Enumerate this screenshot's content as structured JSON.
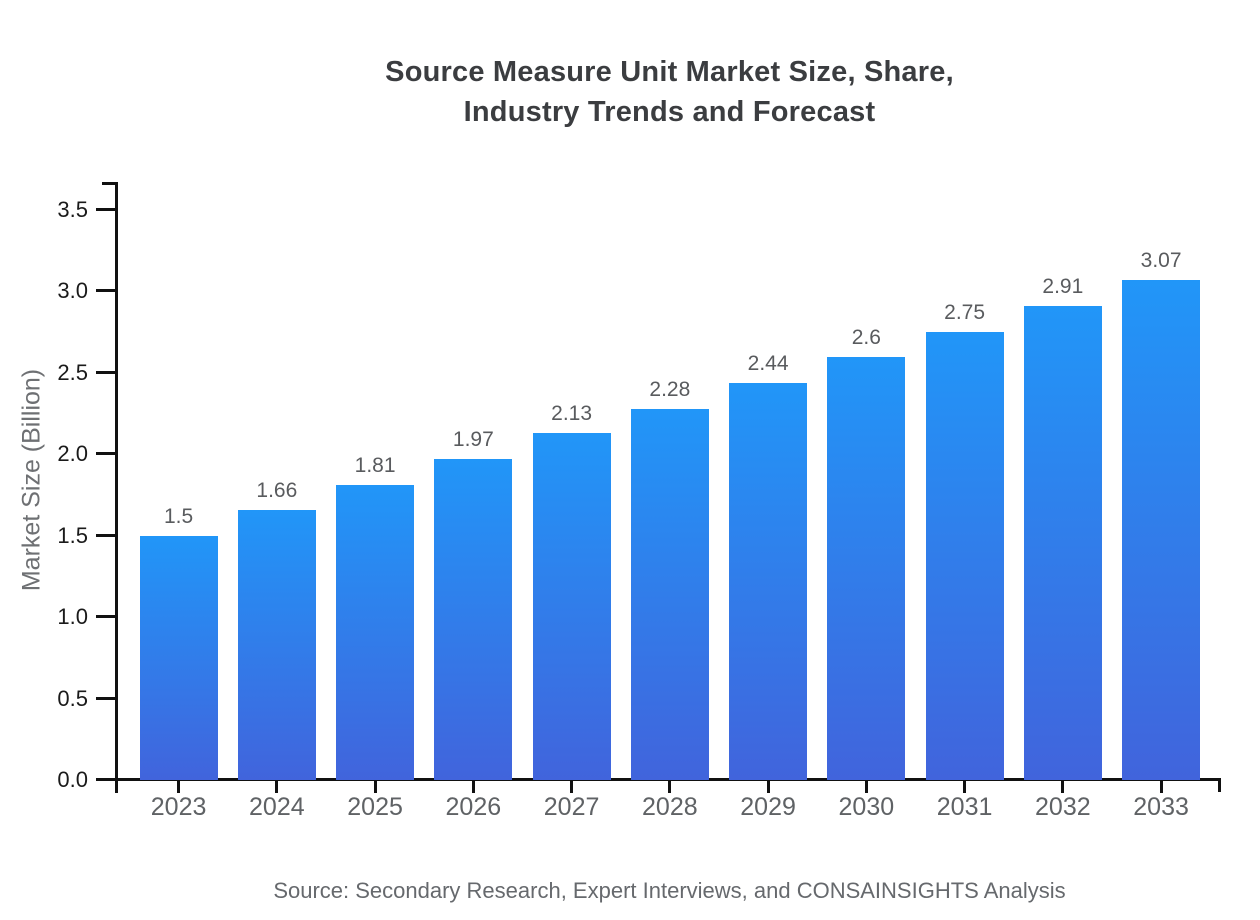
{
  "chart_data": {
    "type": "bar",
    "title": "Source Measure Unit Market Size, Share,\nIndustry Trends and Forecast",
    "categories": [
      "2023",
      "2024",
      "2025",
      "2026",
      "2027",
      "2028",
      "2029",
      "2030",
      "2031",
      "2032",
      "2033"
    ],
    "values": [
      1.5,
      1.66,
      1.81,
      1.97,
      2.13,
      2.28,
      2.44,
      2.6,
      2.75,
      2.91,
      3.07
    ],
    "value_labels": [
      "1.5",
      "1.66",
      "1.81",
      "1.97",
      "2.13",
      "2.28",
      "2.44",
      "2.6",
      "2.75",
      "2.91",
      "3.07"
    ],
    "xlabel": "",
    "ylabel": "Market Size (Billion)",
    "ylim": [
      0,
      3.5
    ],
    "ytick_step": 0.5,
    "ytick_labels": [
      "0.0",
      "0.5",
      "1.0",
      "1.5",
      "2.0",
      "2.5",
      "3.0",
      "3.5"
    ],
    "grid": "off",
    "legend": "none",
    "source_note": "Source: Secondary Research, Expert Interviews, and CONSAINSIGHTS Analysis",
    "colors": {
      "bar_gradient_top": "#2196f8",
      "bar_gradient_bottom": "#4164dc",
      "axis_line": "#111111",
      "ytick_label": "#1a1a1a",
      "xtick_label": "#5f6265",
      "value_label": "#595b5e",
      "title": "#3b3d40",
      "ylabel": "#6e7073",
      "source": "#66696d",
      "background": "#ffffff"
    }
  }
}
